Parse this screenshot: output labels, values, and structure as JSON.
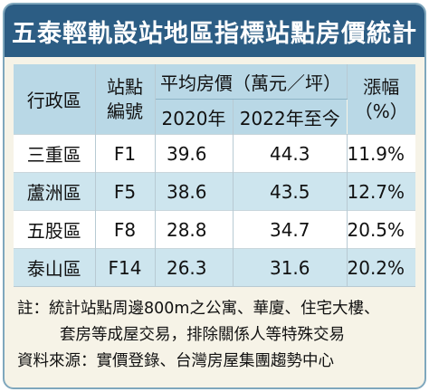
{
  "title": "五泰輕軌設站地區指標站點房價統計",
  "table": {
    "headers": {
      "district": "行政區",
      "station_line1": "站點",
      "station_line2": "編號",
      "price_group": "平均房價（萬元／坪）",
      "col_2020": "2020年",
      "col_2022": "2022年至今",
      "change_line1": "漲幅",
      "change_line2": "（%）"
    },
    "rows": [
      {
        "district": "三重區",
        "station": "F1",
        "p2020": "39.6",
        "p2022": "44.3",
        "change": "11.9%"
      },
      {
        "district": "蘆洲區",
        "station": "F5",
        "p2020": "38.6",
        "p2022": "43.5",
        "change": "12.7%"
      },
      {
        "district": "五股區",
        "station": "F8",
        "p2020": "28.8",
        "p2022": "34.7",
        "change": "20.5%"
      },
      {
        "district": "泰山區",
        "station": "F14",
        "p2020": "26.3",
        "p2022": "31.6",
        "change": "20.2%"
      }
    ]
  },
  "notes": {
    "note_line1": "註：統計站點周邊800m之公寓、華廈、住宅大樓、",
    "note_line2": "套房等成屋交易，排除關係人等特殊交易",
    "source": "資料來源：實價登錄、台灣房屋集團趨勢中心"
  }
}
